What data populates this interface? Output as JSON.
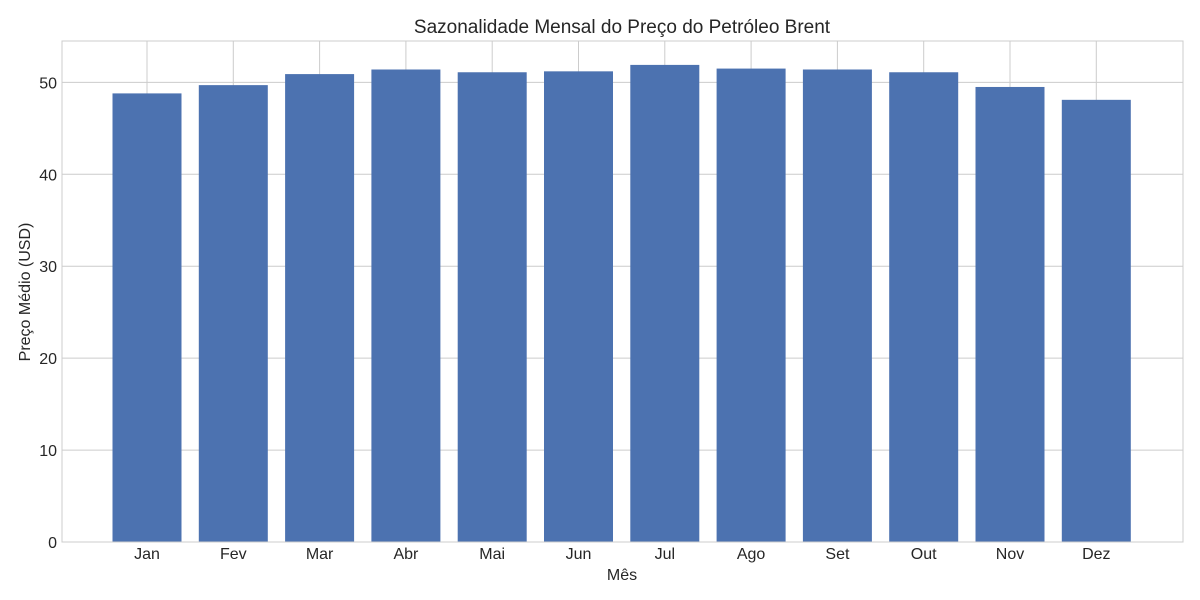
{
  "chart_data": {
    "type": "bar",
    "title": "Sazonalidade Mensal do Preço do Petróleo Brent",
    "xlabel": "Mês",
    "ylabel": "Preço Médio (USD)",
    "categories": [
      "Jan",
      "Fev",
      "Mar",
      "Abr",
      "Mai",
      "Jun",
      "Jul",
      "Ago",
      "Set",
      "Out",
      "Nov",
      "Dez"
    ],
    "values": [
      48.8,
      49.7,
      50.9,
      51.4,
      51.1,
      51.2,
      51.9,
      51.5,
      51.4,
      51.1,
      49.5,
      48.1
    ],
    "ylim": [
      0,
      54.5
    ],
    "yticks": [
      0,
      10,
      20,
      30,
      40,
      50
    ],
    "grid": true,
    "bar_color": "#4c72b0"
  }
}
